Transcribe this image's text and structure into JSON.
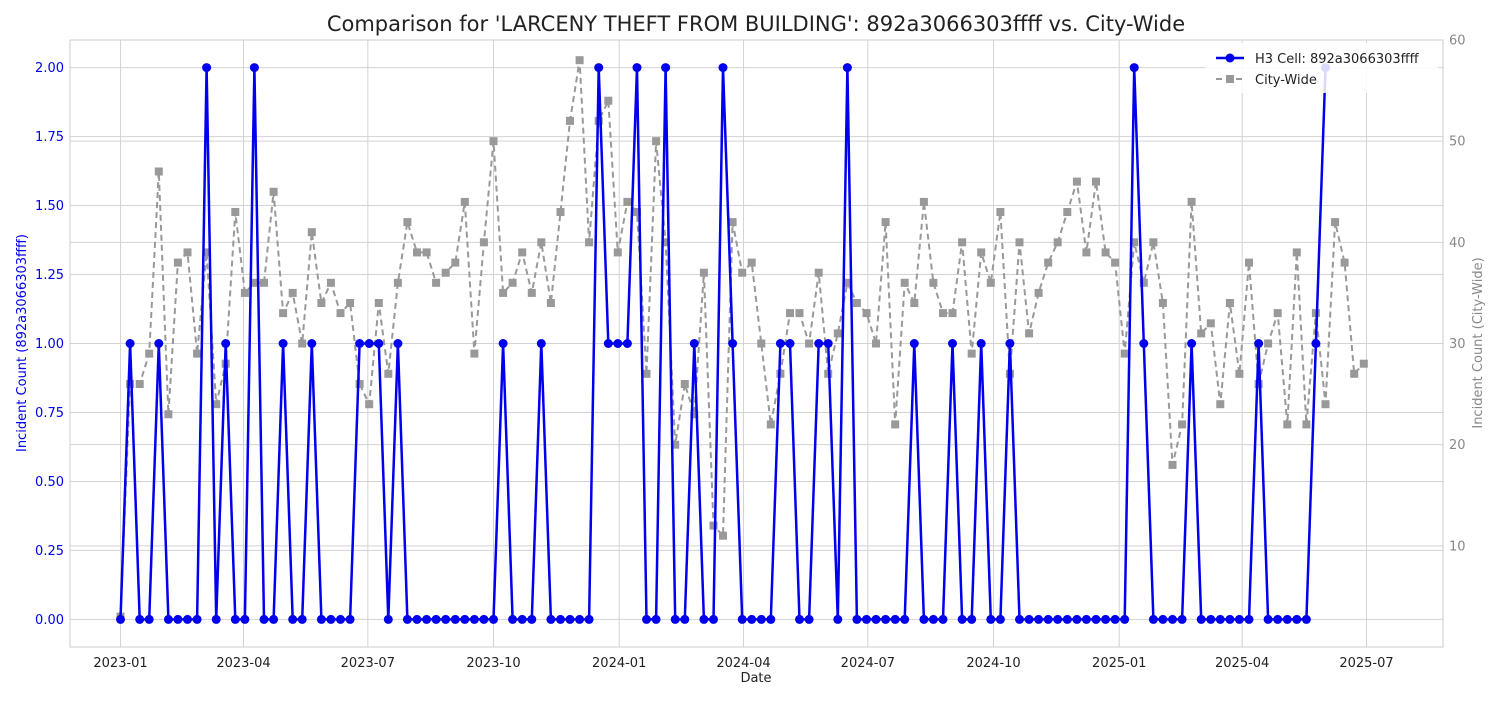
{
  "chart_data": {
    "type": "line",
    "title": "Comparison for 'LARCENY THEFT FROM BUILDING': 892a3066303ffff vs. City-Wide",
    "xlabel": "Date",
    "ylabel_left": "Incident Count (892a3066303ffff)",
    "ylabel_right": "Incident Count (City-Wide)",
    "xlim": [
      "2022-11-25",
      "2025-08-26"
    ],
    "ylim_left": [
      -0.1,
      2.1
    ],
    "ylim_right": [
      0,
      60
    ],
    "x_ticks": [
      "2023-01",
      "2023-04",
      "2023-07",
      "2023-10",
      "2024-01",
      "2024-04",
      "2024-07",
      "2024-10",
      "2025-01",
      "2025-04",
      "2025-07"
    ],
    "y_ticks_left": [
      "0.00",
      "0.25",
      "0.50",
      "0.75",
      "1.00",
      "1.25",
      "1.50",
      "1.75",
      "2.00"
    ],
    "y_ticks_right": [
      "10",
      "20",
      "30",
      "40",
      "50",
      "60"
    ],
    "grid": true,
    "legend_position": "top-right",
    "start_date": "2023-01-01",
    "series": [
      {
        "name": "H3 Cell: 892a3066303ffff",
        "axis": "left",
        "color": "#0000ee",
        "style": "solid-circle",
        "values": [
          0,
          1,
          0,
          0,
          1,
          0,
          0,
          0,
          0,
          2,
          0,
          1,
          0,
          0,
          2,
          0,
          0,
          1,
          0,
          0,
          1,
          0,
          0,
          0,
          0,
          1,
          1,
          1,
          0,
          1,
          0,
          0,
          0,
          0,
          0,
          0,
          0,
          0,
          0,
          0,
          1,
          0,
          0,
          0,
          1,
          0,
          0,
          0,
          0,
          0,
          2,
          1,
          1,
          1,
          2,
          0,
          0,
          2,
          0,
          0,
          1,
          0,
          0,
          2,
          1,
          0,
          0,
          0,
          0,
          1,
          1,
          0,
          0,
          1,
          1,
          0,
          2,
          0,
          0,
          0,
          0,
          0,
          0,
          1,
          0,
          0,
          0,
          1,
          0,
          0,
          1,
          0,
          0,
          1,
          0,
          0,
          0,
          0,
          0,
          0,
          0,
          0,
          0,
          0,
          0,
          0,
          2,
          1,
          0,
          0,
          0,
          0,
          1,
          0,
          0,
          0,
          0,
          0,
          0,
          1,
          0,
          0,
          0,
          0,
          0,
          1,
          2
        ]
      },
      {
        "name": "City-Wide",
        "axis": "right",
        "color": "#999999",
        "style": "dashed-square",
        "values": [
          3,
          26,
          26,
          29,
          47,
          23,
          38,
          39,
          29,
          39,
          24,
          28,
          43,
          35,
          36,
          36,
          45,
          33,
          35,
          30,
          41,
          34,
          36,
          33,
          34,
          26,
          24,
          34,
          27,
          36,
          42,
          39,
          39,
          36,
          37,
          38,
          44,
          29,
          40,
          50,
          35,
          36,
          39,
          35,
          40,
          34,
          43,
          52,
          58,
          40,
          52,
          54,
          39,
          44,
          43,
          27,
          50,
          40,
          20,
          26,
          23,
          37,
          12,
          11,
          42,
          37,
          38,
          30,
          22,
          27,
          33,
          33,
          30,
          37,
          27,
          31,
          36,
          34,
          33,
          30,
          42,
          22,
          36,
          34,
          44,
          36,
          33,
          33,
          40,
          29,
          39,
          36,
          43,
          27,
          40,
          31,
          35,
          38,
          40,
          43,
          46,
          39,
          46,
          39,
          38,
          29,
          40,
          36,
          40,
          34,
          18,
          22,
          44,
          31,
          32,
          24,
          34,
          27,
          38,
          26,
          30,
          33,
          22,
          39,
          22,
          33,
          24,
          42,
          38,
          27,
          28
        ]
      }
    ]
  }
}
